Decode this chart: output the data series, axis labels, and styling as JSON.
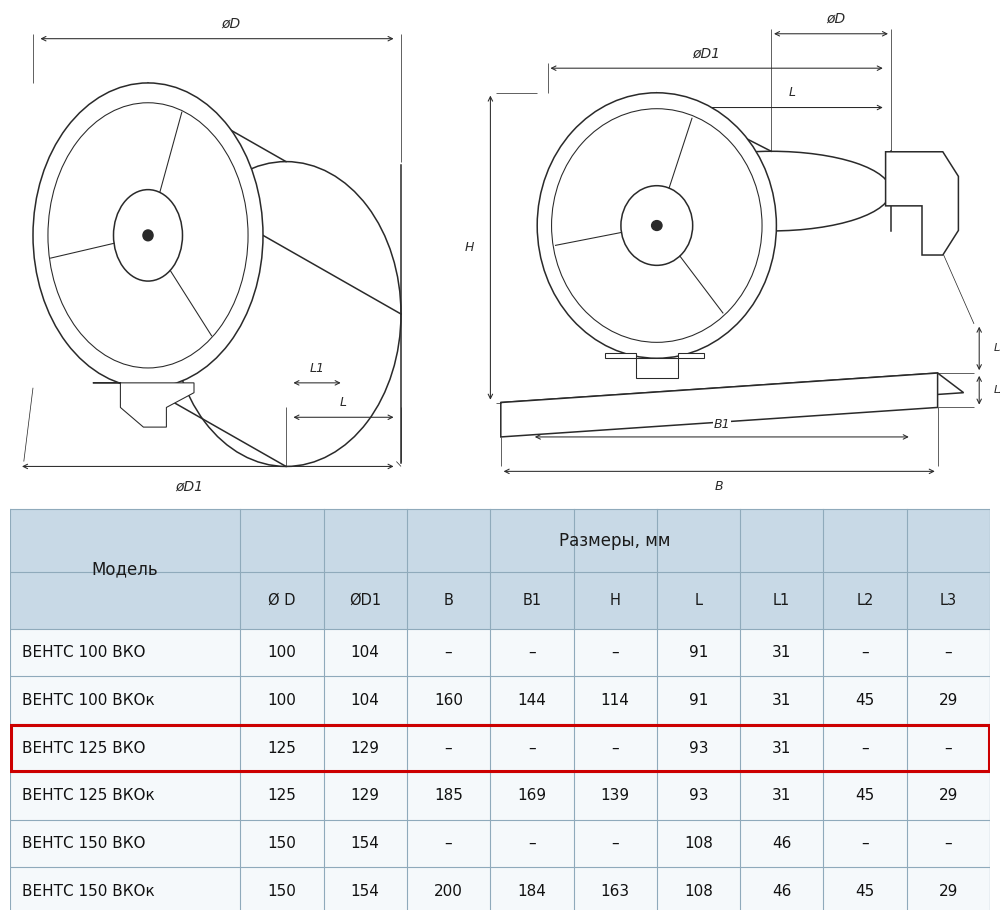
{
  "bg_color": "#ffffff",
  "table_header_bg": "#c8d9e6",
  "highlight_color": "#cc0000",
  "col_headers": [
    "Ø D",
    "ØD1",
    "B",
    "B1",
    "H",
    "L",
    "L1",
    "L2",
    "L3"
  ],
  "row_header": "Модель",
  "size_header": "Размеры, мм",
  "rows": [
    {
      "Модель": "ВЕНТС 100 ВКО",
      "Ø D": "100",
      "ØD1": "104",
      "B": "–",
      "B1": "–",
      "H": "–",
      "L": "91",
      "L1": "31",
      "L2": "–",
      "L3": "–"
    },
    {
      "Модель": "ВЕНТС 100 ВКОк",
      "Ø D": "100",
      "ØD1": "104",
      "B": "160",
      "B1": "144",
      "H": "114",
      "L": "91",
      "L1": "31",
      "L2": "45",
      "L3": "29"
    },
    {
      "Модель": "ВЕНТС 125 ВКО",
      "Ø D": "125",
      "ØD1": "129",
      "B": "–",
      "B1": "–",
      "H": "–",
      "L": "93",
      "L1": "31",
      "L2": "–",
      "L3": "–"
    },
    {
      "Модель": "ВЕНТС 125 ВКОк",
      "Ø D": "125",
      "ØD1": "129",
      "B": "185",
      "B1": "169",
      "H": "139",
      "L": "93",
      "L1": "31",
      "L2": "45",
      "L3": "29"
    },
    {
      "Модель": "ВЕНТС 150 ВКО",
      "Ø D": "150",
      "ØD1": "154",
      "B": "–",
      "B1": "–",
      "H": "–",
      "L": "108",
      "L1": "46",
      "L2": "–",
      "L3": "–"
    },
    {
      "Модель": "ВЕНТС 150 ВКОк",
      "Ø D": "150",
      "ØD1": "154",
      "B": "200",
      "B1": "184",
      "H": "163",
      "L": "108",
      "L1": "46",
      "L2": "45",
      "L3": "29"
    }
  ],
  "line_color": "#2a2a2a",
  "dim_color": "#2a2a2a",
  "drawing_lw": 1.1,
  "dim_lw": 0.75,
  "highlight_row_idx": 2
}
